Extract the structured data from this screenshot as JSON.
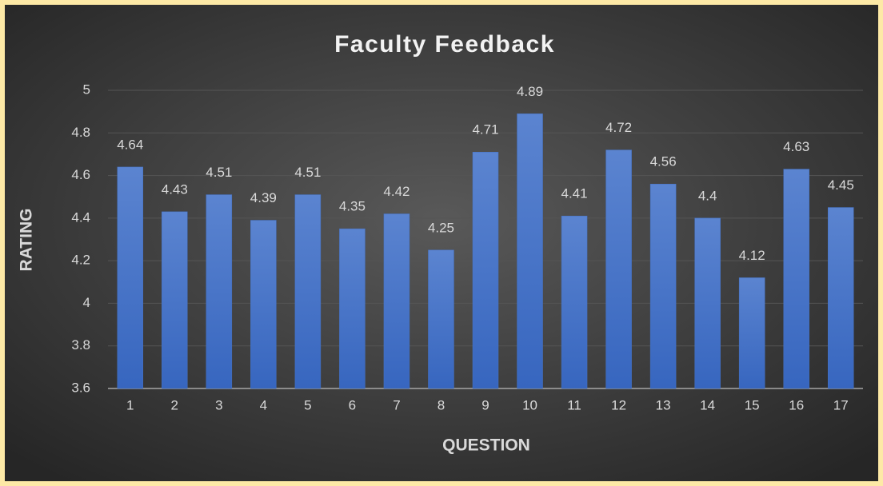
{
  "chart_data": {
    "type": "bar",
    "title": "Faculty Feedback",
    "x_label": "QUESTION",
    "y_label": "RATING",
    "categories": [
      "1",
      "2",
      "3",
      "4",
      "5",
      "6",
      "7",
      "8",
      "9",
      "10",
      "11",
      "12",
      "13",
      "14",
      "15",
      "16",
      "17"
    ],
    "values": [
      4.64,
      4.43,
      4.51,
      4.39,
      4.51,
      4.35,
      4.42,
      4.25,
      4.71,
      4.89,
      4.41,
      4.72,
      4.56,
      4.4,
      4.12,
      4.63,
      4.45
    ],
    "color": "#4472c4",
    "ylim": [
      3.6,
      5
    ],
    "yticks": [
      3.6,
      3.8,
      4,
      4.2,
      4.4,
      4.6,
      4.8,
      5
    ],
    "grid": true
  }
}
